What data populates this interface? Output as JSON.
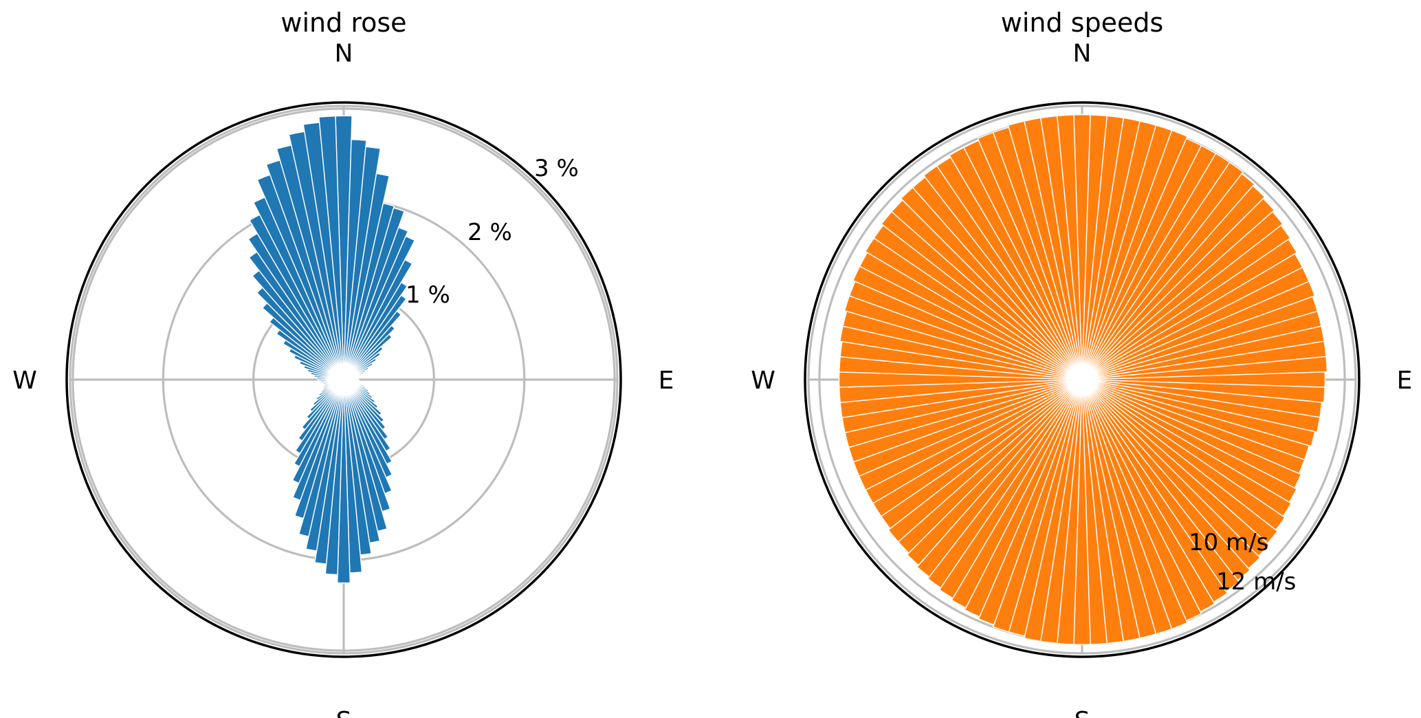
{
  "chart_data": [
    {
      "type": "bar",
      "polar": true,
      "title": "wind rose",
      "theta_direction": "clockwise",
      "theta_zero": "N",
      "compass_labels": [
        "N",
        "E",
        "S",
        "W"
      ],
      "radial_ticks": [
        1,
        2,
        3
      ],
      "radial_tick_labels": [
        "1 %",
        "2 %",
        "3 %"
      ],
      "rlim": [
        0,
        3.03
      ],
      "grid": true,
      "color": "#1f77b4",
      "bin_width_deg": 3.6,
      "directions_deg": [
        0,
        3.6,
        7.2,
        10.8,
        14.4,
        18,
        21.6,
        25.2,
        28.8,
        32.4,
        36,
        39.6,
        43.2,
        46.8,
        50.4,
        54,
        57.6,
        61.2,
        64.8,
        68.4,
        72,
        75.6,
        79.2,
        82.8,
        86.4,
        90,
        93.6,
        97.2,
        100.8,
        104.4,
        108,
        111.6,
        115.2,
        118.8,
        122.4,
        126,
        129.6,
        133.2,
        136.8,
        140.4,
        144,
        147.6,
        151.2,
        154.8,
        158.4,
        162,
        165.6,
        169.2,
        172.8,
        176.4,
        180,
        183.6,
        187.2,
        190.8,
        194.4,
        198,
        201.6,
        205.2,
        208.8,
        212.4,
        216,
        219.6,
        223.2,
        226.8,
        230.4,
        234,
        237.6,
        241.2,
        244.8,
        248.4,
        252,
        255.6,
        259.2,
        262.8,
        266.4,
        270,
        273.6,
        277.2,
        280.8,
        284.4,
        288,
        291.6,
        295.2,
        298.8,
        302.4,
        306,
        309.6,
        313.2,
        316.8,
        320.4,
        324,
        327.6,
        331.2,
        334.8,
        338.4,
        342,
        345.6,
        349.2,
        352.8,
        356.4
      ],
      "values": [
        2.92,
        2.66,
        2.59,
        2.31,
        2.0,
        1.98,
        1.79,
        1.73,
        1.49,
        1.25,
        1.13,
        0.96,
        0.8,
        0.71,
        0.55,
        0.49,
        0.42,
        0.36,
        0.3,
        0.26,
        0.23,
        0.2,
        0.18,
        0.17,
        0.16,
        0.16,
        0.17,
        0.18,
        0.19,
        0.21,
        0.24,
        0.26,
        0.3,
        0.33,
        0.37,
        0.42,
        0.48,
        0.56,
        0.63,
        0.7,
        0.8,
        0.92,
        1.05,
        1.18,
        1.34,
        1.52,
        1.72,
        1.83,
        1.95,
        2.14,
        2.25,
        2.16,
        2.05,
        1.92,
        1.78,
        1.6,
        1.42,
        1.25,
        1.08,
        0.95,
        0.82,
        0.7,
        0.58,
        0.5,
        0.43,
        0.37,
        0.32,
        0.28,
        0.25,
        0.24,
        0.23,
        0.22,
        0.23,
        0.24,
        0.26,
        0.28,
        0.3,
        0.33,
        0.37,
        0.41,
        0.46,
        0.52,
        0.6,
        0.68,
        0.78,
        0.9,
        1.04,
        1.2,
        1.36,
        1.53,
        1.71,
        1.88,
        2.05,
        2.2,
        2.41,
        2.53,
        2.66,
        2.78,
        2.86,
        2.92
      ]
    },
    {
      "type": "bar",
      "polar": true,
      "title": "wind speeds",
      "theta_direction": "clockwise",
      "theta_zero": "N",
      "compass_labels": [
        "N",
        "E",
        "S",
        "W"
      ],
      "radial_ticks": [
        10,
        12
      ],
      "radial_tick_labels": [
        "10 m/s",
        "12 m/s"
      ],
      "rlim": [
        0,
        12.5
      ],
      "grid": true,
      "color": "#ff7f0e",
      "bin_width_deg": 3.6,
      "directions_deg": [
        0,
        3.6,
        7.2,
        10.8,
        14.4,
        18,
        21.6,
        25.2,
        28.8,
        32.4,
        36,
        39.6,
        43.2,
        46.8,
        50.4,
        54,
        57.6,
        61.2,
        64.8,
        68.4,
        72,
        75.6,
        79.2,
        82.8,
        86.4,
        90,
        93.6,
        97.2,
        100.8,
        104.4,
        108,
        111.6,
        115.2,
        118.8,
        122.4,
        126,
        129.6,
        133.2,
        136.8,
        140.4,
        144,
        147.6,
        151.2,
        154.8,
        158.4,
        162,
        165.6,
        169.2,
        172.8,
        176.4,
        180,
        183.6,
        187.2,
        190.8,
        194.4,
        198,
        201.6,
        205.2,
        208.8,
        212.4,
        216,
        219.6,
        223.2,
        226.8,
        230.4,
        234,
        237.6,
        241.2,
        244.8,
        248.4,
        252,
        255.6,
        259.2,
        262.8,
        266.4,
        270,
        273.6,
        277.2,
        280.8,
        284.4,
        288,
        291.6,
        295.2,
        298.8,
        302.4,
        306,
        309.6,
        313.2,
        316.8,
        320.4,
        324,
        327.6,
        331.2,
        334.8,
        338.4,
        342,
        345.6,
        349.2,
        352.8,
        356.4
      ],
      "values": [
        12.1,
        12.1,
        12.1,
        12.1,
        12.1,
        12.1,
        12.1,
        12.0,
        12.0,
        12.0,
        12.0,
        11.9,
        11.8,
        11.7,
        11.6,
        11.5,
        11.4,
        11.3,
        11.3,
        11.3,
        11.2,
        11.2,
        11.2,
        11.2,
        11.2,
        11.1,
        11.1,
        11.0,
        11.0,
        10.9,
        10.8,
        10.8,
        10.9,
        11.0,
        11.1,
        11.2,
        11.3,
        11.4,
        11.5,
        11.6,
        11.7,
        11.8,
        11.9,
        12.0,
        12.1,
        12.1,
        12.1,
        12.1,
        12.1,
        12.1,
        12.1,
        12.1,
        12.1,
        12.1,
        12.0,
        12.0,
        11.9,
        11.8,
        11.7,
        11.6,
        11.5,
        11.4,
        11.3,
        11.2,
        11.2,
        11.1,
        11.1,
        11.1,
        11.1,
        11.1,
        11.1,
        11.1,
        11.1,
        11.1,
        11.1,
        11.1,
        11.1,
        11.1,
        11.2,
        11.2,
        11.3,
        11.3,
        11.4,
        11.4,
        11.5,
        11.5,
        11.6,
        11.6,
        11.7,
        11.7,
        11.8,
        11.8,
        11.9,
        11.9,
        12.0,
        12.0,
        12.1,
        12.1,
        12.1,
        12.1
      ]
    }
  ]
}
